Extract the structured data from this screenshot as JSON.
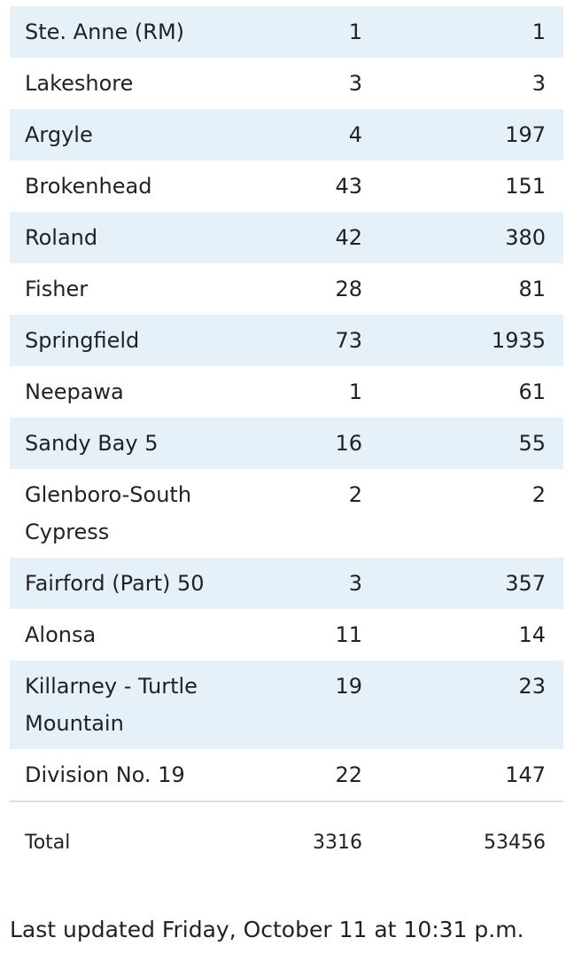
{
  "table": {
    "rows": [
      [
        "Ste. Anne (RM)",
        1,
        1
      ],
      [
        "Lakeshore",
        3,
        3
      ],
      [
        "Argyle",
        4,
        197
      ],
      [
        "Brokenhead",
        43,
        151
      ],
      [
        "Roland",
        42,
        380
      ],
      [
        "Fisher",
        28,
        81
      ],
      [
        "Springfield",
        73,
        1935
      ],
      [
        "Neepawa",
        1,
        61
      ],
      [
        "Sandy Bay 5",
        16,
        55
      ],
      [
        "Glenboro-South Cypress",
        2,
        2
      ],
      [
        "Fairford (Part) 50",
        3,
        357
      ],
      [
        "Alonsa",
        11,
        14
      ],
      [
        "Killarney - Turtle Mountain",
        19,
        23
      ],
      [
        "Division No. 19",
        22,
        147
      ]
    ],
    "total": [
      "Total",
      3316,
      53456
    ]
  },
  "footer": "Last updated Friday, October 11 at 10:31 p.m."
}
